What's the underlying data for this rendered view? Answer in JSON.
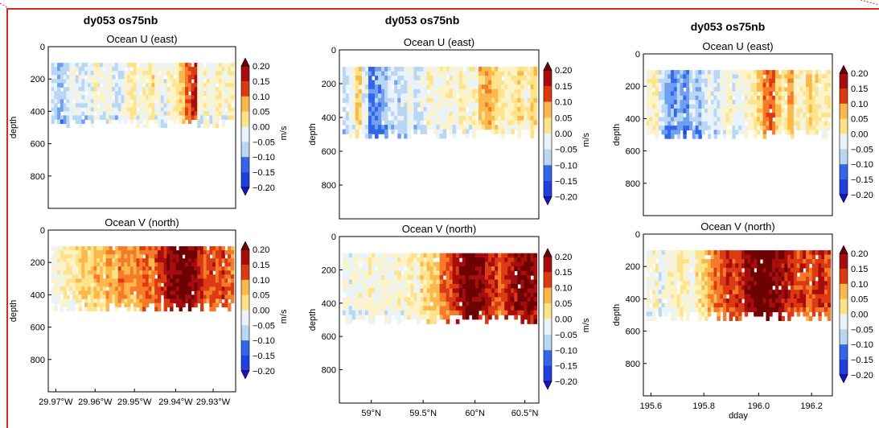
{
  "colors": {
    "frame": "#d42a20",
    "levels": [
      "#1414c8",
      "#2240dd",
      "#3366e8",
      "#6e9ff0",
      "#b9d6f3",
      "#e8f3fb",
      "#fdf3c7",
      "#fde38a",
      "#fbb84d",
      "#f57a2a",
      "#dc3a13",
      "#a80d0d",
      "#6e0303"
    ]
  },
  "chart_data": [
    {
      "type": "heatmap",
      "figure_title": "dy053 os75nb",
      "panels": [
        {
          "title": "Ocean U (east)",
          "ylabel": "depth",
          "ylim": [
            0,
            1000
          ],
          "yticks": [
            "0",
            "200",
            "400",
            "600",
            "800"
          ],
          "xticks": [],
          "colorbar": {
            "label": "m/s",
            "ticks": [
              "0.20",
              "0.15",
              "0.10",
              "0.05",
              "0.00",
              "−0.05",
              "−0.10",
              "−0.15",
              "−0.20"
            ],
            "range": [
              -0.2,
              0.2
            ]
          },
          "depth_range": [
            100,
            450
          ],
          "profile": [
            -0.05,
            -0.08,
            -0.05,
            -0.02,
            -0.04,
            -0.05,
            -0.03,
            0.0,
            -0.03,
            -0.02,
            -0.05,
            -0.04,
            0.0,
            0.02,
            -0.02,
            0.0,
            0.03,
            -0.01,
            -0.03,
            0.0,
            0.02,
            0.05,
            0.12,
            0.15,
            -0.02,
            0.0,
            -0.02,
            0.02,
            -0.01,
            0.02
          ]
        },
        {
          "title": "Ocean V (north)",
          "ylabel": "depth",
          "ylim": [
            0,
            1000
          ],
          "yticks": [
            "0",
            "200",
            "400",
            "600",
            "800"
          ],
          "xticks": [
            "29.97°W",
            "29.96°W",
            "29.95°W",
            "29.94°W",
            "29.93°W"
          ],
          "colorbar": {
            "label": "m/s",
            "ticks": [
              "0.20",
              "0.15",
              "0.10",
              "0.05",
              "0.00",
              "−0.05",
              "−0.10",
              "−0.15",
              "−0.20"
            ],
            "range": [
              -0.2,
              0.2
            ]
          },
          "depth_range": [
            100,
            450
          ],
          "profile": [
            -0.02,
            0.0,
            0.02,
            0.0,
            0.03,
            0.05,
            0.04,
            0.06,
            0.05,
            0.08,
            0.06,
            0.1,
            0.08,
            0.07,
            0.1,
            0.12,
            0.1,
            0.13,
            0.15,
            0.18,
            0.2,
            0.21,
            0.2,
            0.18,
            0.15,
            0.12,
            0.14,
            0.12,
            0.13,
            0.1
          ]
        }
      ]
    },
    {
      "type": "heatmap",
      "figure_title": "dy053 os75nb",
      "panels": [
        {
          "title": "Ocean U (east)",
          "ylabel": "depth",
          "ylim": [
            0,
            1000
          ],
          "yticks": [
            "0",
            "200",
            "400",
            "600",
            "800"
          ],
          "xticks": [],
          "colorbar": {
            "label": "m/s",
            "ticks": [
              "0.20",
              "0.15",
              "0.10",
              "0.05",
              "0.00",
              "−0.05",
              "−0.10",
              "−0.15",
              "−0.20"
            ],
            "range": [
              -0.2,
              0.2
            ]
          },
          "depth_range": [
            100,
            470
          ],
          "profile": [
            -0.05,
            -0.02,
            0.05,
            -0.03,
            -0.12,
            -0.1,
            -0.08,
            -0.05,
            -0.06,
            -0.04,
            -0.02,
            -0.05,
            -0.03,
            0.0,
            -0.02,
            -0.01,
            0.0,
            -0.02,
            0.02,
            -0.01,
            0.0,
            0.06,
            0.08,
            0.05,
            0.02,
            0.0,
            0.02,
            0.03,
            0.0,
            0.05
          ]
        },
        {
          "title": "Ocean V (north)",
          "ylabel": "depth",
          "ylim": [
            0,
            1000
          ],
          "yticks": [
            "0",
            "200",
            "400",
            "600",
            "800"
          ],
          "xticks": [
            "59°N",
            "59.5°N",
            "60°N",
            "60.5°N"
          ],
          "colorbar": {
            "label": "m/s",
            "ticks": [
              "0.20",
              "0.15",
              "0.10",
              "0.05",
              "0.00",
              "−0.05",
              "−0.10",
              "−0.15",
              "−0.20"
            ],
            "range": [
              -0.2,
              0.2
            ]
          },
          "depth_range": [
            100,
            470
          ],
          "profile": [
            -0.02,
            -0.03,
            -0.01,
            -0.02,
            0.0,
            -0.02,
            -0.01,
            -0.02,
            0.0,
            -0.01,
            0.02,
            0.0,
            0.03,
            0.05,
            0.06,
            0.1,
            0.12,
            0.15,
            0.18,
            0.21,
            0.2,
            0.18,
            0.15,
            0.14,
            0.12,
            0.15,
            0.17,
            0.18,
            0.2,
            0.18
          ]
        }
      ]
    },
    {
      "type": "heatmap",
      "figure_title": "dy053 os75nb",
      "xlabel": "dday",
      "panels": [
        {
          "title": "Ocean U (east)",
          "ylabel": "depth",
          "ylim": [
            0,
            1000
          ],
          "yticks": [
            "0",
            "200",
            "400",
            "600",
            "800"
          ],
          "xticks": [],
          "colorbar": {
            "label": "",
            "ticks": [
              "0.20",
              "0.15",
              "0.10",
              "0.05",
              "0.00",
              "−0.05",
              "−0.10",
              "−0.15",
              "−0.20"
            ],
            "range": [
              -0.2,
              0.2
            ]
          },
          "depth_range": [
            100,
            470
          ],
          "profile": [
            0.0,
            0.02,
            -0.05,
            -0.08,
            -0.1,
            -0.08,
            -0.12,
            -0.06,
            -0.08,
            -0.05,
            -0.03,
            -0.05,
            -0.02,
            0.0,
            -0.03,
            -0.02,
            0.0,
            0.02,
            0.05,
            0.1,
            0.12,
            0.05,
            0.03,
            0.08,
            0.02,
            0.0,
            0.05,
            0.03,
            0.0,
            0.02
          ]
        },
        {
          "title": "Ocean V (north)",
          "ylabel": "depth",
          "ylim": [
            0,
            1000
          ],
          "yticks": [
            "0",
            "200",
            "400",
            "600",
            "800"
          ],
          "xticks": [
            "195.6",
            "195.8",
            "196.0",
            "196.2"
          ],
          "colorbar": {
            "label": "",
            "ticks": [
              "0.20",
              "0.15",
              "0.10",
              "0.05",
              "0.00",
              "−0.05",
              "−0.10",
              "−0.15",
              "−0.20"
            ],
            "range": [
              -0.2,
              0.2
            ]
          },
          "depth_range": [
            100,
            480
          ],
          "profile": [
            -0.02,
            0.0,
            -0.03,
            -0.01,
            0.0,
            0.02,
            0.0,
            -0.02,
            0.03,
            0.05,
            0.08,
            0.1,
            0.12,
            0.15,
            0.13,
            0.15,
            0.18,
            0.2,
            0.22,
            0.21,
            0.2,
            0.18,
            0.17,
            0.15,
            0.14,
            0.13,
            0.12,
            0.14,
            0.15,
            0.13
          ]
        }
      ]
    }
  ]
}
